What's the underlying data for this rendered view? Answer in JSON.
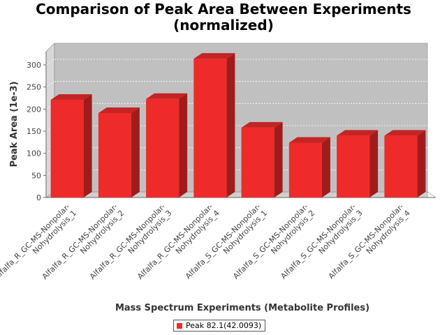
{
  "chart_data": {
    "type": "bar",
    "title_lines": [
      "Comparison of Peak Area Between Experiments",
      "(normalized)"
    ],
    "xlabel": "Mass Spectrum Experiments (Metabolite Profiles)",
    "ylabel": "Peak Area (1e-3)",
    "ylim": [
      0,
      330
    ],
    "yticks": [
      0,
      50,
      100,
      150,
      200,
      250,
      300
    ],
    "grid": true,
    "legend_position": "bottom-center",
    "categories": [
      [
        "Alfalfa_R_GC-MS-Nonpolar-",
        "Nohydrolysis_1"
      ],
      [
        "Alfalfa_R_GC-MS-Nonpolar-",
        "Nohydrolysis_2"
      ],
      [
        "Alfalfa_R_GC-MS-Nonpolar-",
        "Nohydrolysis_3"
      ],
      [
        "Alfalfa_R_GC-MS-Nonpolar-",
        "Nohydrolysis_4"
      ],
      [
        "Alfalfa_S_GC-MS-Nonpolar-",
        "Nohydrolysis_1"
      ],
      [
        "Alfalfa_S_GC-MS-Nonpolar-",
        "Nohydrolysis_2"
      ],
      [
        "Alfalfa_S_GC-MS-Nonpolar-",
        "Nohydrolysis_3"
      ],
      [
        "Alfalfa_S_GC-MS-Nonpolar-",
        "Nohydrolysis_4"
      ]
    ],
    "series": [
      {
        "name": "Peak 82.1(42.0093)",
        "color": "#ee2a2a",
        "values": [
          221,
          191,
          223,
          314,
          158,
          124,
          140,
          140
        ]
      }
    ]
  },
  "colors": {
    "plot_background": "#c0c0c0",
    "bar_front": "#ee2a2a",
    "bar_top": "#c42424",
    "bar_side": "#a01c1c"
  }
}
